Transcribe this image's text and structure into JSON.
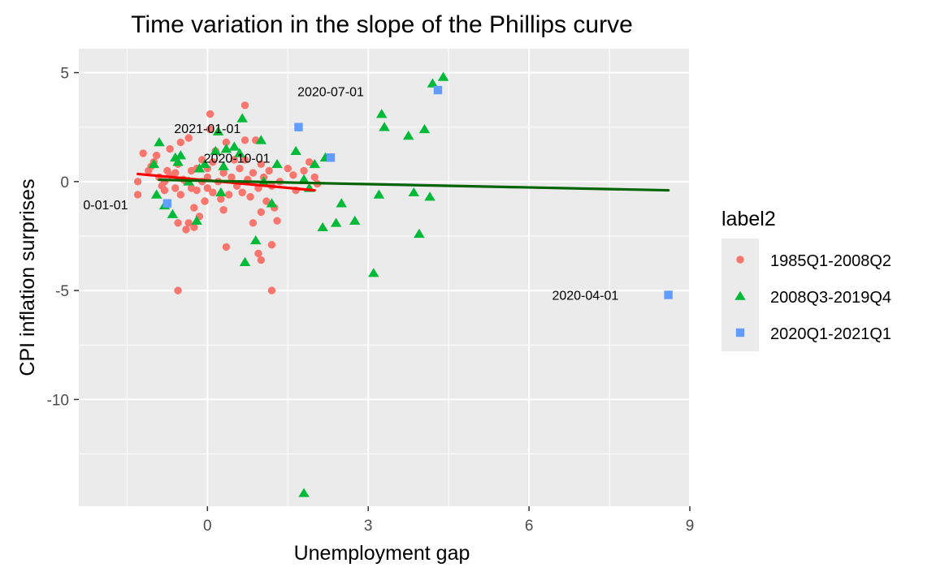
{
  "chart_data": {
    "type": "scatter",
    "title": "Time variation in the slope of the Phillips curve",
    "xlabel": "Unemployment gap",
    "ylabel": "CPI inflation surprises",
    "xlim": [
      -2.4,
      9.0
    ],
    "ylim": [
      -14.9,
      6.1
    ],
    "x_ticks": [
      0,
      3,
      6,
      9
    ],
    "y_ticks": [
      5,
      0,
      -5,
      -10
    ],
    "grid": true,
    "panel_background": "#ebebeb",
    "legend": {
      "title": "label2",
      "position": "right"
    },
    "series": [
      {
        "name": "1985Q1-2008Q2",
        "color": "#F8766D",
        "shape": "circle",
        "points": [
          [
            -1.3,
            0.0
          ],
          [
            -1.3,
            -0.6
          ],
          [
            -1.2,
            1.3
          ],
          [
            -1.1,
            0.5
          ],
          [
            -1.05,
            0.7
          ],
          [
            -1.0,
            0.9
          ],
          [
            -0.95,
            1.2
          ],
          [
            -0.9,
            0.2
          ],
          [
            -0.85,
            -0.2
          ],
          [
            -0.8,
            0.0
          ],
          [
            -0.8,
            -0.4
          ],
          [
            -0.75,
            0.5
          ],
          [
            -0.7,
            0.3
          ],
          [
            -0.7,
            1.5
          ],
          [
            -0.6,
            -0.3
          ],
          [
            -0.6,
            0.4
          ],
          [
            -0.55,
            0.8
          ],
          [
            -0.5,
            -0.6
          ],
          [
            -0.5,
            1.8
          ],
          [
            -0.45,
            0.1
          ],
          [
            -0.4,
            0.0
          ],
          [
            -0.35,
            2.0
          ],
          [
            -0.3,
            0.5
          ],
          [
            -0.3,
            -0.3
          ],
          [
            -0.25,
            -1.2
          ],
          [
            -0.25,
            -2.1
          ],
          [
            -0.2,
            0.6
          ],
          [
            -0.2,
            -0.4
          ],
          [
            -0.15,
            -1.6
          ],
          [
            -0.1,
            1.0
          ],
          [
            -0.1,
            0.0
          ],
          [
            -0.05,
            -0.9
          ],
          [
            0.0,
            0.2
          ],
          [
            0.0,
            0.6
          ],
          [
            0.0,
            -0.3
          ],
          [
            0.05,
            3.1
          ],
          [
            0.05,
            2.4
          ],
          [
            0.1,
            0.9
          ],
          [
            0.1,
            -0.5
          ],
          [
            0.15,
            1.4
          ],
          [
            0.2,
            0.0
          ],
          [
            0.25,
            -0.8
          ],
          [
            0.3,
            0.4
          ],
          [
            0.3,
            -1.3
          ],
          [
            0.35,
            1.8
          ],
          [
            0.4,
            -0.6
          ],
          [
            0.45,
            0.2
          ],
          [
            0.5,
            1.0
          ],
          [
            0.55,
            -0.2
          ],
          [
            0.6,
            0.6
          ],
          [
            0.65,
            -0.5
          ],
          [
            0.7,
            1.9
          ],
          [
            0.7,
            1.0
          ],
          [
            0.75,
            0.1
          ],
          [
            0.8,
            -0.7
          ],
          [
            0.85,
            0.4
          ],
          [
            0.9,
            1.9
          ],
          [
            0.95,
            -0.3
          ],
          [
            1.0,
            0.8
          ],
          [
            1.0,
            -1.4
          ],
          [
            1.05,
            0.2
          ],
          [
            1.1,
            -0.9
          ],
          [
            1.15,
            0.5
          ],
          [
            1.2,
            -0.2
          ],
          [
            1.25,
            -1.2
          ],
          [
            1.3,
            -1.8
          ],
          [
            1.35,
            0.0
          ],
          [
            1.5,
            0.6
          ],
          [
            1.6,
            0.3
          ],
          [
            1.65,
            -0.4
          ],
          [
            1.8,
            0.5
          ],
          [
            1.9,
            0.9
          ],
          [
            2.0,
            0.2
          ],
          [
            2.05,
            -0.1
          ],
          [
            -0.55,
            -1.9
          ],
          [
            -0.55,
            -5.0
          ],
          [
            -0.4,
            -2.2
          ],
          [
            -0.35,
            -1.9
          ],
          [
            0.35,
            -3.0
          ],
          [
            0.7,
            3.5
          ],
          [
            0.85,
            -1.9
          ],
          [
            0.95,
            -3.3
          ],
          [
            1.0,
            -3.6
          ],
          [
            1.2,
            -2.9
          ],
          [
            1.2,
            -5.0
          ]
        ]
      },
      {
        "name": "2008Q3-2019Q4",
        "color": "#00BA38",
        "shape": "triangle",
        "points": [
          [
            -1.0,
            0.8
          ],
          [
            -0.95,
            -0.6
          ],
          [
            -0.9,
            1.8
          ],
          [
            -0.8,
            -1.1
          ],
          [
            -0.65,
            -1.5
          ],
          [
            -0.6,
            1.1
          ],
          [
            -0.55,
            0.9
          ],
          [
            -0.5,
            1.2
          ],
          [
            -0.35,
            0.0
          ],
          [
            -0.2,
            -1.8
          ],
          [
            -0.15,
            0.6
          ],
          [
            -0.05,
            0.8
          ],
          [
            0.15,
            1.4
          ],
          [
            0.2,
            2.3
          ],
          [
            0.25,
            -0.5
          ],
          [
            0.3,
            0.7
          ],
          [
            0.35,
            1.5
          ],
          [
            0.5,
            1.6
          ],
          [
            0.6,
            1.3
          ],
          [
            0.65,
            2.9
          ],
          [
            0.7,
            -3.7
          ],
          [
            0.9,
            -2.7
          ],
          [
            1.0,
            1.9
          ],
          [
            1.05,
            0.0
          ],
          [
            1.2,
            -1.0
          ],
          [
            1.3,
            0.8
          ],
          [
            1.65,
            1.4
          ],
          [
            1.8,
            0.1
          ],
          [
            1.9,
            -0.3
          ],
          [
            2.0,
            0.8
          ],
          [
            2.15,
            -2.1
          ],
          [
            2.2,
            1.1
          ],
          [
            2.4,
            -1.9
          ],
          [
            2.5,
            -1.0
          ],
          [
            2.75,
            -1.8
          ],
          [
            3.1,
            -4.2
          ],
          [
            3.2,
            -0.6
          ],
          [
            3.25,
            3.1
          ],
          [
            3.3,
            2.5
          ],
          [
            3.75,
            2.1
          ],
          [
            3.85,
            -0.5
          ],
          [
            3.95,
            -2.4
          ],
          [
            4.05,
            2.4
          ],
          [
            4.15,
            -0.7
          ],
          [
            4.2,
            4.5
          ],
          [
            4.4,
            4.8
          ],
          [
            1.8,
            -14.3
          ]
        ]
      },
      {
        "name": "2020Q1-2021Q1",
        "color": "#619CFF",
        "shape": "square",
        "points": [
          [
            -0.75,
            -1.0
          ],
          [
            1.7,
            2.5
          ],
          [
            2.3,
            1.1
          ],
          [
            4.3,
            4.2
          ],
          [
            8.6,
            -5.2
          ]
        ]
      }
    ],
    "fit_lines": [
      {
        "color": "#ff0000",
        "x": [
          -1.3,
          2.0
        ],
        "y": [
          0.35,
          -0.4
        ]
      },
      {
        "color": "#006400",
        "x": [
          -0.9,
          8.6
        ],
        "y": [
          0.08,
          -0.4
        ]
      }
    ],
    "annotations": [
      {
        "text": "0-01-01",
        "x": -1.9,
        "y": -1.05
      },
      {
        "text": "2021-01-01",
        "x": 0.0,
        "y": 2.45
      },
      {
        "text": "2020-10-01",
        "x": 0.55,
        "y": 1.1
      },
      {
        "text": "2020-07-01",
        "x": 2.3,
        "y": 4.15
      },
      {
        "text": "2020-04-01",
        "x": 7.05,
        "y": -5.2
      }
    ]
  }
}
